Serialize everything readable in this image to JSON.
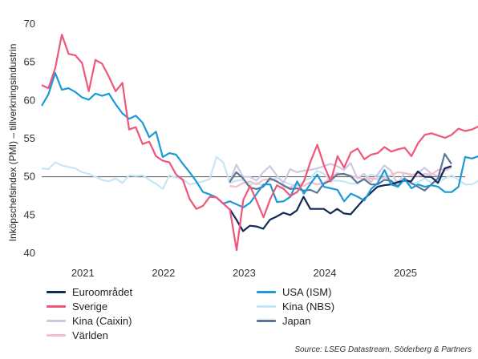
{
  "chart_data": {
    "type": "line",
    "ylabel": "Inköpschefsindex (PMI) – tillverkningsindustrin",
    "ylim": [
      40,
      70
    ],
    "yticks": [
      40,
      45,
      50,
      55,
      60,
      65,
      70
    ],
    "xlim": [
      2020.5,
      2025.75
    ],
    "xticks": [
      {
        "label": "2021",
        "x": 2021.0
      },
      {
        "label": "2022",
        "x": 2022.0
      },
      {
        "label": "2023",
        "x": 2023.0
      },
      {
        "label": "2024",
        "x": 2024.0
      },
      {
        "label": "2025",
        "x": 2025.0
      }
    ],
    "reference_line": 50,
    "grid": false,
    "legend_position": "bottom",
    "source": "Source: LSEG Datastream, Söderberg & Partners",
    "series": [
      {
        "name": "Euroområdet",
        "color": "#0f2a57",
        "start": 2022.83,
        "values": [
          45.8,
          44.4,
          42.9,
          43.6,
          43.5,
          43.2,
          44.4,
          44.8,
          45.3,
          45.0,
          45.6,
          47.4,
          45.8,
          45.8,
          45.8,
          45.2,
          45.8,
          45.2,
          45.1,
          46.1,
          47.1,
          47.9,
          48.7,
          48.9,
          49.0,
          49.3,
          49.5,
          49.4,
          50.7,
          50.0,
          50.0,
          49.2,
          51.1,
          51.4
        ]
      },
      {
        "name": "USA (ISM)",
        "color": "#1a9ad6",
        "start": 2020.5,
        "values": [
          59.3,
          60.8,
          63.6,
          61.4,
          61.6,
          61.1,
          60.4,
          60.1,
          60.9,
          60.6,
          60.9,
          59.5,
          58.3,
          57.6,
          58.0,
          57.1,
          55.2,
          55.9,
          52.6,
          53.1,
          52.9,
          51.7,
          50.6,
          49.4,
          48.0,
          47.7,
          47.3,
          46.5,
          46.8,
          46.4,
          46.0,
          46.6,
          47.8,
          49.0,
          49.0,
          46.7,
          46.8,
          47.4,
          49.4,
          47.8,
          49.1,
          50.3,
          48.7,
          48.5,
          48.3,
          46.8,
          47.8,
          47.4,
          46.9,
          48.4,
          49.2,
          50.9,
          49.0,
          48.7,
          49.7,
          48.5,
          49.0,
          48.7,
          48.9,
          48.7,
          48.0,
          48.0,
          48.7,
          52.6,
          52.4,
          52.7
        ]
      },
      {
        "name": "Sverige",
        "color": "#f0557a",
        "start": 2020.5,
        "values": [
          62.0,
          61.6,
          64.2,
          68.6,
          66.1,
          65.9,
          64.9,
          61.2,
          65.3,
          64.8,
          63.1,
          61.2,
          62.3,
          56.2,
          56.5,
          54.3,
          54.6,
          52.7,
          52.1,
          51.9,
          50.3,
          49.6,
          47.1,
          45.8,
          46.2,
          47.4,
          47.3,
          46.5,
          45.7,
          40.4,
          47.0,
          48.8,
          46.8,
          44.7,
          47.1,
          48.9,
          48.4,
          47.5,
          48.0,
          49.4,
          52.0,
          54.2,
          51.5,
          49.4,
          52.7,
          51.2,
          53.2,
          53.7,
          52.3,
          52.9,
          53.1,
          53.9,
          53.3,
          53.6,
          53.8,
          52.7,
          54.4,
          55.5,
          55.7,
          55.4,
          55.1,
          55.5,
          56.3,
          56.0,
          56.2,
          56.6
        ]
      },
      {
        "name": "Kina (NBS)",
        "color": "#c5e6f5",
        "start": 2020.5,
        "values": [
          51.1,
          51.0,
          51.9,
          51.5,
          51.3,
          51.1,
          50.6,
          50.4,
          50.0,
          49.6,
          49.4,
          49.8,
          49.2,
          50.2,
          50.1,
          50.2,
          49.6,
          49.1,
          48.4,
          50.2,
          49.9,
          49.7,
          49.0,
          49.2,
          49.4,
          49.7,
          52.6,
          51.9,
          49.2,
          49.5,
          49.6,
          49.0,
          49.2,
          48.8,
          49.5,
          49.9,
          49.4,
          49.0,
          48.8,
          49.5,
          49.8,
          50.8,
          50.4,
          49.5,
          49.5,
          49.4,
          49.1,
          49.1,
          49.8,
          50.3,
          50.1,
          50.2,
          49.0,
          49.5,
          49.7,
          49.0,
          49.3,
          49.8,
          49.2,
          49.4,
          49.8,
          50.2,
          49.6,
          49.0,
          49.0,
          49.5
        ]
      },
      {
        "name": "Kina (Caixin)",
        "color": "#cfc9e0",
        "start": 2022.83,
        "values": [
          49.2,
          51.6,
          50.0,
          50.0,
          49.5,
          50.6,
          51.4,
          50.2,
          49.2,
          51.0,
          50.6,
          50.8,
          50.9,
          51.1,
          51.4,
          51.7,
          51.4,
          50.9,
          51.8,
          49.8,
          50.4,
          49.3,
          50.3,
          51.5,
          50.8,
          49.0,
          50.5,
          50.2,
          50.5,
          51.2,
          50.4,
          50.1,
          50.8,
          51.2
        ]
      },
      {
        "name": "Japan",
        "color": "#5a7796",
        "start": 2022.83,
        "values": [
          49.3,
          50.6,
          49.8,
          48.6,
          48.4,
          48.7,
          49.8,
          49.4,
          48.9,
          48.4,
          48.5,
          48.2,
          48.3,
          47.9,
          49.1,
          49.5,
          50.3,
          50.4,
          50.1,
          49.2,
          49.7,
          49.0,
          49.0,
          49.6,
          49.5,
          48.7,
          49.8,
          49.2,
          48.7,
          48.2,
          49.0,
          49.8,
          53.0,
          51.7
        ]
      },
      {
        "name": "Världen",
        "color": "#f7bccd",
        "start": 2022.83,
        "values": [
          48.8,
          48.7,
          49.2,
          49.4,
          49.0,
          49.6,
          49.7,
          49.5,
          48.7,
          48.6,
          49.1,
          48.8,
          49.3,
          49.0,
          49.2,
          49.9,
          50.5,
          50.3,
          50.1,
          50.0,
          49.6,
          49.8,
          49.7,
          49.9,
          50.2,
          50.6,
          50.5,
          50.3,
          50.1,
          50.4,
          50.3,
          50.9,
          51.0,
          51.4
        ]
      }
    ]
  }
}
